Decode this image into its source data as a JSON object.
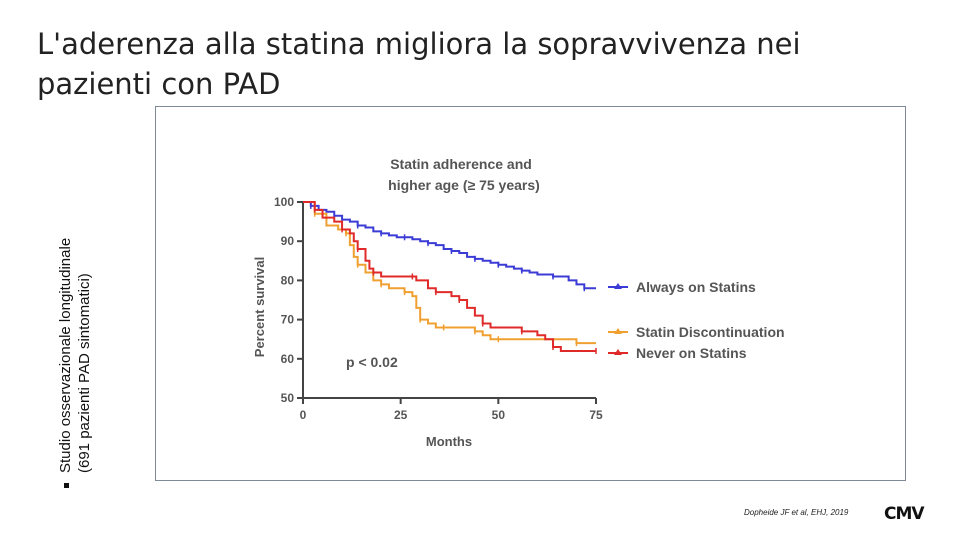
{
  "slide": {
    "title": "L'aderenza alla statina migliora la sopravvivenza nei pazienti con PAD",
    "side_note_line1": "Studio osservazionale longitudinale",
    "side_note_line2": "(691 pazienti PAD sintomatici)",
    "citation": "Dopheide JF et al, EHJ, 2019",
    "logo_text": "CMV"
  },
  "chart_data": {
    "type": "line",
    "title_line1": "Statin adherence and",
    "title_line2": "higher age (≥ 75 years)",
    "xlabel": "Months",
    "ylabel": "Percent survival",
    "xlim": [
      0,
      75
    ],
    "ylim": [
      50,
      100
    ],
    "x_ticks": [
      "0",
      "25",
      "50",
      "75"
    ],
    "y_ticks": [
      "50",
      "60",
      "70",
      "80",
      "90",
      "100"
    ],
    "annotation": "p < 0.02",
    "grid": false,
    "legend_placement": "right of curves",
    "series": [
      {
        "name": "Always on Statins",
        "color": "#3b3bd6",
        "points": [
          [
            0,
            100
          ],
          [
            2,
            99
          ],
          [
            4,
            98
          ],
          [
            6,
            97.5
          ],
          [
            8,
            96.5
          ],
          [
            10,
            95.5
          ],
          [
            12,
            95
          ],
          [
            14,
            94
          ],
          [
            16,
            93.5
          ],
          [
            18,
            92.5
          ],
          [
            20,
            92
          ],
          [
            22,
            91.5
          ],
          [
            24,
            91
          ],
          [
            26,
            91
          ],
          [
            28,
            90.5
          ],
          [
            30,
            90
          ],
          [
            32,
            89.5
          ],
          [
            34,
            89
          ],
          [
            36,
            88
          ],
          [
            38,
            87.5
          ],
          [
            40,
            87
          ],
          [
            42,
            86
          ],
          [
            44,
            85.5
          ],
          [
            46,
            85
          ],
          [
            48,
            84.5
          ],
          [
            50,
            84
          ],
          [
            52,
            83.5
          ],
          [
            54,
            83
          ],
          [
            56,
            82.5
          ],
          [
            58,
            82
          ],
          [
            60,
            81.5
          ],
          [
            64,
            81
          ],
          [
            68,
            80
          ],
          [
            70,
            79
          ],
          [
            72,
            78
          ],
          [
            75,
            78
          ]
        ]
      },
      {
        "name": "Statin Discontinuation",
        "color": "#f0a030",
        "points": [
          [
            0,
            100
          ],
          [
            3,
            97
          ],
          [
            6,
            94
          ],
          [
            9,
            93
          ],
          [
            11,
            92
          ],
          [
            12,
            89
          ],
          [
            13,
            86
          ],
          [
            14,
            84
          ],
          [
            16,
            82
          ],
          [
            18,
            80
          ],
          [
            20,
            79
          ],
          [
            22,
            78
          ],
          [
            24,
            78
          ],
          [
            26,
            77
          ],
          [
            28,
            76
          ],
          [
            29,
            73
          ],
          [
            30,
            70
          ],
          [
            32,
            69
          ],
          [
            34,
            68
          ],
          [
            36,
            68
          ],
          [
            40,
            68
          ],
          [
            42,
            68
          ],
          [
            44,
            67
          ],
          [
            46,
            66
          ],
          [
            48,
            65
          ],
          [
            50,
            65
          ],
          [
            60,
            65
          ],
          [
            65,
            65
          ],
          [
            70,
            64
          ],
          [
            75,
            64
          ]
        ]
      },
      {
        "name": "Never on Statins",
        "color": "#e02a2a",
        "points": [
          [
            0,
            100
          ],
          [
            3,
            98
          ],
          [
            5,
            96
          ],
          [
            8,
            95
          ],
          [
            10,
            93
          ],
          [
            12,
            92
          ],
          [
            13,
            90
          ],
          [
            14,
            88
          ],
          [
            16,
            85
          ],
          [
            17,
            83
          ],
          [
            18,
            82
          ],
          [
            20,
            81
          ],
          [
            24,
            81
          ],
          [
            28,
            81
          ],
          [
            29,
            80
          ],
          [
            32,
            78
          ],
          [
            34,
            77
          ],
          [
            36,
            77
          ],
          [
            38,
            76
          ],
          [
            40,
            75
          ],
          [
            42,
            73
          ],
          [
            44,
            71
          ],
          [
            46,
            69
          ],
          [
            48,
            68
          ],
          [
            52,
            68
          ],
          [
            56,
            67
          ],
          [
            60,
            66
          ],
          [
            62,
            65
          ],
          [
            64,
            63
          ],
          [
            66,
            62
          ],
          [
            70,
            62
          ],
          [
            75,
            62
          ]
        ]
      }
    ]
  }
}
